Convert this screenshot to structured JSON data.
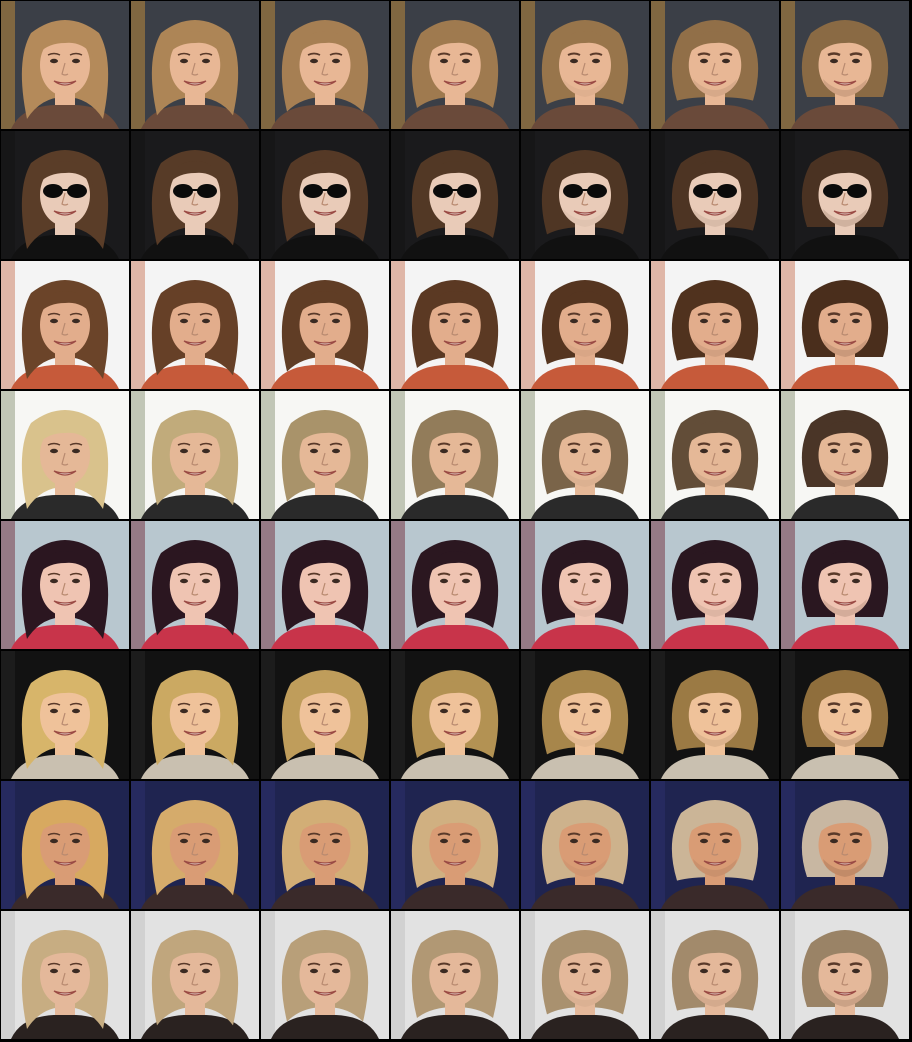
{
  "grid": {
    "columns": 7,
    "rows": [
      {
        "bg": "#3b3f47",
        "hair_start": "#b48a5a",
        "hair_end": "#8a6a44",
        "skin": "#e8b795",
        "accent": "#d49a3a",
        "shirt": "#6a4a3a",
        "glasses": false
      },
      {
        "bg": "#1a1a1c",
        "hair_start": "#5a3d28",
        "hair_end": "#4a3222",
        "skin": "#e9cbb8",
        "accent": "#111111",
        "shirt": "#111111",
        "glasses": true
      },
      {
        "bg": "#f4f4f4",
        "hair_start": "#6b4429",
        "hair_end": "#4a2e1c",
        "skin": "#e2ad8c",
        "accent": "#c66a4a",
        "shirt": "#c65a3a",
        "glasses": false
      },
      {
        "bg": "#f7f7f4",
        "hair_start": "#d9c28c",
        "hair_end": "#4a3527",
        "skin": "#e5b897",
        "accent": "#7f8a6a",
        "shirt": "#2a2a2a",
        "glasses": false
      },
      {
        "bg": "#b8c7cf",
        "hair_start": "#2b1620",
        "hair_end": "#2a1720",
        "skin": "#efc4b2",
        "accent": "#6a1d2a",
        "shirt": "#c8344a",
        "glasses": false
      },
      {
        "bg": "#121212",
        "hair_start": "#d7b56a",
        "hair_end": "#8f6e3c",
        "skin": "#efc29a",
        "accent": "#2a2a2a",
        "shirt": "#c9c0b0",
        "glasses": false
      },
      {
        "bg": "#1f2450",
        "hair_start": "#d7a960",
        "hair_end": "#c8b7a2",
        "skin": "#d99c75",
        "accent": "#2e3470",
        "shirt": "#3a2a2a",
        "glasses": false
      },
      {
        "bg": "#e2e2e2",
        "hair_start": "#c7ad82",
        "hair_end": "#9a8366",
        "skin": "#e4b89a",
        "accent": "#bdbdbd",
        "shirt": "#2a2220",
        "glasses": false
      }
    ]
  }
}
